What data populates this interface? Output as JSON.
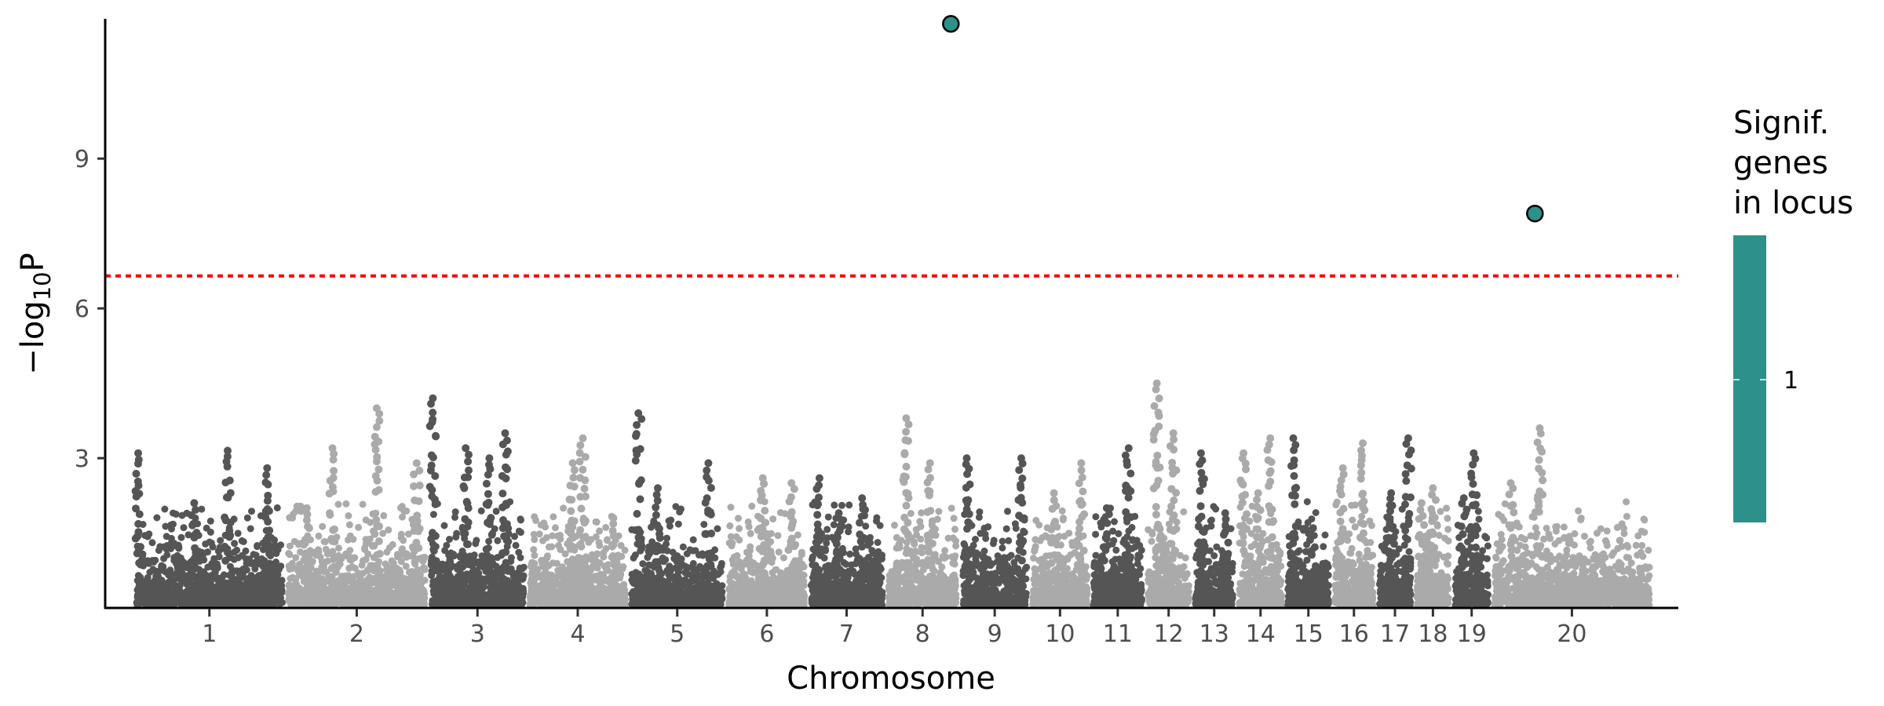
{
  "chart_data": {
    "type": "scatter",
    "subtype": "manhattan",
    "xlabel": "Chromosome",
    "ylabel_main": "−log",
    "ylabel_sub": "10",
    "ylabel_tail": "P",
    "y_ticks": [
      3,
      6,
      9
    ],
    "ylim": [
      0,
      11.8
    ],
    "threshold_y": 6.65,
    "threshold_color": "#ff0000",
    "colors": {
      "dark": "#555555",
      "light": "#aaaaaa",
      "highlight": "#2b918a",
      "threshold": "#ff0000"
    },
    "chromosomes": [
      {
        "label": "1",
        "start": 0,
        "end": 100,
        "peaks": [
          [
            0.01,
            3.1
          ],
          [
            0.62,
            3.15
          ],
          [
            0.88,
            2.8
          ],
          [
            0.4,
            2.1
          ]
        ]
      },
      {
        "label": "2",
        "start": 100,
        "end": 194,
        "peaks": [
          [
            0.33,
            3.2
          ],
          [
            0.64,
            4.0
          ],
          [
            0.92,
            2.9
          ],
          [
            0.15,
            2.0
          ]
        ]
      },
      {
        "label": "3",
        "start": 194,
        "end": 259,
        "peaks": [
          [
            0.03,
            4.2
          ],
          [
            0.38,
            3.2
          ],
          [
            0.78,
            3.5
          ],
          [
            0.62,
            3.0
          ]
        ]
      },
      {
        "label": "4",
        "start": 259,
        "end": 326,
        "peaks": [
          [
            0.55,
            3.4
          ],
          [
            0.45,
            2.9
          ],
          [
            0.85,
            1.8
          ]
        ]
      },
      {
        "label": "5",
        "start": 326,
        "end": 390,
        "peaks": [
          [
            0.1,
            3.9
          ],
          [
            0.82,
            2.9
          ],
          [
            0.3,
            2.4
          ]
        ]
      },
      {
        "label": "6",
        "start": 390,
        "end": 444,
        "peaks": [
          [
            0.45,
            2.6
          ],
          [
            0.8,
            2.5
          ]
        ]
      },
      {
        "label": "7",
        "start": 444,
        "end": 495,
        "peaks": [
          [
            0.15,
            2.6
          ],
          [
            0.7,
            2.2
          ],
          [
            0.4,
            1.9
          ]
        ]
      },
      {
        "label": "8",
        "start": 495,
        "end": 544,
        "peaks": [
          [
            0.28,
            3.8
          ],
          [
            0.6,
            2.9
          ]
        ]
      },
      {
        "label": "9",
        "start": 544,
        "end": 590,
        "peaks": [
          [
            0.1,
            3.0
          ],
          [
            0.88,
            3.0
          ]
        ]
      },
      {
        "label": "10",
        "start": 590,
        "end": 630,
        "peaks": [
          [
            0.4,
            2.3
          ],
          [
            0.85,
            2.9
          ]
        ]
      },
      {
        "label": "11",
        "start": 630,
        "end": 666,
        "peaks": [
          [
            0.7,
            3.2
          ],
          [
            0.3,
            2.0
          ]
        ]
      },
      {
        "label": "12",
        "start": 666,
        "end": 697,
        "peaks": [
          [
            0.25,
            4.5
          ],
          [
            0.6,
            3.5
          ]
        ]
      },
      {
        "label": "13",
        "start": 697,
        "end": 726,
        "peaks": [
          [
            0.2,
            3.1
          ],
          [
            0.75,
            1.9
          ]
        ]
      },
      {
        "label": "14",
        "start": 726,
        "end": 758,
        "peaks": [
          [
            0.15,
            3.1
          ],
          [
            0.7,
            3.4
          ],
          [
            0.45,
            2.3
          ]
        ]
      },
      {
        "label": "15",
        "start": 758,
        "end": 789,
        "peaks": [
          [
            0.18,
            3.4
          ],
          [
            0.6,
            1.6
          ]
        ]
      },
      {
        "label": "16",
        "start": 789,
        "end": 818,
        "peaks": [
          [
            0.25,
            2.8
          ],
          [
            0.7,
            3.3
          ]
        ]
      },
      {
        "label": "17",
        "start": 818,
        "end": 843,
        "peaks": [
          [
            0.4,
            2.3
          ],
          [
            0.85,
            3.4
          ]
        ]
      },
      {
        "label": "18",
        "start": 843,
        "end": 868,
        "peaks": [
          [
            0.5,
            2.4
          ],
          [
            0.2,
            2.1
          ]
        ]
      },
      {
        "label": "19",
        "start": 868,
        "end": 894,
        "peaks": [
          [
            0.55,
            3.1
          ],
          [
            0.3,
            2.2
          ]
        ]
      },
      {
        "label": "20",
        "start": 894,
        "end": 1000,
        "peaks": [
          [
            0.3,
            3.6
          ],
          [
            0.12,
            2.5
          ]
        ]
      }
    ],
    "significant_points": [
      {
        "chromosome": "8",
        "y": 11.7
      },
      {
        "chromosome": "20",
        "y": 7.9
      }
    ],
    "legend": {
      "title_lines": [
        "Signif.",
        "genes",
        "in locus"
      ],
      "label": "1",
      "color": "#2b918a"
    }
  }
}
